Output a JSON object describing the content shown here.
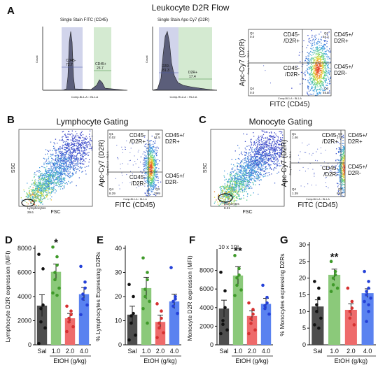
{
  "panels": {
    "A": {
      "letter": "A",
      "title": "Leukocyte D2R Flow",
      "hist1": {
        "title": "Single Stain FITC (CD45)",
        "xlabel": "Comp-BL1-A :: BL1-A",
        "ylabel": "Count",
        "gate_neg": "CD45-",
        "gate_neg_val": "72.7",
        "gate_pos": "CD45+",
        "gate_pos_val": "23.7"
      },
      "hist2": {
        "title": "Single Stain Apc-Cy7 (D2R)",
        "xlabel": "Comp-RL2-A :: RL2-A",
        "ylabel": "Count",
        "gate_neg": "D2R-",
        "gate_neg_val": "81.3",
        "gate_pos": "D2R+",
        "gate_pos_val": "17.4"
      },
      "quad": {
        "ylabel": "Apc-Cy7 (D2R)",
        "ylabel_small": "Comp-RL2-A :: RL2-A",
        "xlabel": "FITC (CD45)",
        "xlabel_small": "Comp-BL1-A :: BL1-A",
        "q1": "Q1",
        "q1_val": "0.0",
        "q2": "Q2",
        "q2_val": "54.2",
        "q3": "Q3",
        "q3_val": "45.8",
        "q4": "Q4",
        "q4_val": "0.0",
        "ul": "CD45-\n/D2R+",
        "ur": "CD45+/\nD2R+",
        "ll": "CD45-\n/D2R-",
        "lr": "CD45+/\nD2R-"
      }
    },
    "B": {
      "letter": "B",
      "title": "Lymphocyte Gating",
      "scatter": {
        "ylabel": "SSC",
        "xlabel": "FSC",
        "gate": "Lymphocytes",
        "gate_val": "29.6"
      },
      "quad": {
        "ylabel": "Apc-Cy7 (D2R)",
        "ylabel_small": "Comp-RL2-A :: RL2-A",
        "xlabel": "FITC (CD45)",
        "xlabel_small": "Comp-BL1-A :: BL1-A",
        "q1": "Q1",
        "q1_val": "0.02",
        "q2": "Q2",
        "q2_val": "61.5",
        "q3": "Q3",
        "q3_val": "29.9",
        "q4": "Q4",
        "q4_val": "8.29",
        "ul": "CD45-\n/D2R+",
        "ur": "CD45+/\nD2R+",
        "ll": "CD45-\n/D2R-",
        "lr": "CD45+/\nD2R-"
      }
    },
    "C": {
      "letter": "C",
      "title": "Monocyte Gating",
      "scatter": {
        "ylabel": "SSC",
        "xlabel": "FSC",
        "gate": "Monocytes",
        "gate_val": "8.21"
      },
      "quad": {
        "ylabel": "Apc-Cy7 (D2R)",
        "ylabel_small": "Comp-RL2-A :: RL2-A",
        "xlabel": "FITC (CD45)",
        "xlabel_small": "Comp-BL1-A :: BL1-A",
        "q1": "Q1",
        "q1_val": "1.46",
        "q2": "Q2",
        "q2_val": "27.4",
        "q3": "Q3",
        "q3_val": "69.7",
        "q4": "Q4",
        "q4_val": "1.39",
        "ul": "CD45-\n/D2R+",
        "ur": "CD45+/\nD2R+",
        "ll": "CD45-\n/D2R-",
        "lr": "CD45+/\nD2R-"
      }
    }
  },
  "bar_xlabel": "EtOH (g/kg)",
  "colors": {
    "Sal": "#4d4d4d",
    "1.0": "#8bc97a",
    "2.0": "#ee6b6b",
    "4.0": "#5a82f0",
    "dot_Sal": "#111111",
    "dot_1.0": "#3f9a2a",
    "dot_2.0": "#d63131",
    "dot_4.0": "#2441d8"
  },
  "chart_data": [
    {
      "panel": "D",
      "type": "bar",
      "ylabel": "Lymphocyte D2R expression (MFI)",
      "ylim": [
        0,
        8000
      ],
      "yticks": [
        0,
        2000,
        4000,
        6000,
        8000
      ],
      "categories": [
        "Sal",
        "1.0",
        "2.0",
        "4.0"
      ],
      "xlabel": "EtOH (g/kg)",
      "values": [
        3250,
        6050,
        2200,
        4200
      ],
      "errors": [
        900,
        650,
        400,
        550
      ],
      "points": [
        [
          7500,
          6300,
          3300,
          3000,
          1900,
          1400,
          100
        ],
        [
          8100,
          7300,
          6600,
          6000,
          5400,
          4700,
          4300,
          4100
        ],
        [
          3200,
          2800,
          2500,
          2200,
          1900,
          1500,
          1100
        ],
        [
          6500,
          5200,
          4700,
          4200,
          3800,
          3300,
          2500
        ]
      ],
      "significance": [
        "",
        "*",
        "",
        ""
      ]
    },
    {
      "panel": "E",
      "type": "bar",
      "ylabel": "% Lymphocytes Expressing D2Rs",
      "ylim": [
        0,
        40
      ],
      "yticks": [
        0,
        10,
        20,
        30,
        40
      ],
      "categories": [
        "Sal",
        "1.0",
        "2.0",
        "4.0"
      ],
      "xlabel": "EtOH (g/kg)",
      "values": [
        12.5,
        23.5,
        9.5,
        18
      ],
      "errors": [
        3.5,
        4.5,
        2.8,
        3
      ],
      "points": [
        [
          25,
          20,
          13,
          12,
          9,
          4,
          2
        ],
        [
          36,
          30,
          27,
          23,
          20,
          18,
          15,
          9
        ],
        [
          17,
          14,
          11,
          9,
          7,
          5,
          3
        ],
        [
          32,
          20,
          19,
          18,
          16,
          13
        ]
      ],
      "significance": [
        "",
        "",
        "",
        ""
      ]
    },
    {
      "panel": "F",
      "type": "bar",
      "ylabel": "Monocyte D2R expression (MFI)",
      "ylabel_multiplier": "10 x 10³",
      "ylim": [
        0,
        10000
      ],
      "yticks": [
        0,
        2000,
        4000,
        6000,
        8000
      ],
      "categories": [
        "Sal",
        "1.0",
        "2.0",
        "4.0"
      ],
      "xlabel": "EtOH (g/kg)",
      "values": [
        3900,
        7450,
        3100,
        4400
      ],
      "errors": [
        900,
        950,
        550,
        600
      ],
      "points": [
        [
          7800,
          5800,
          4000,
          2600,
          2200,
          1600,
          1200
        ],
        [
          9600,
          8200,
          7500,
          7200,
          6400,
          5900,
          5300
        ],
        [
          4500,
          3800,
          3300,
          2800,
          2300,
          1600,
          1200
        ],
        [
          6400,
          5100,
          4500,
          4200,
          3900,
          3300
        ]
      ],
      "significance": [
        "",
        "**",
        "",
        ""
      ]
    },
    {
      "panel": "G",
      "type": "bar",
      "ylabel": "% Monocytes expressing D2Rs",
      "ylim": [
        0,
        30
      ],
      "yticks": [
        0,
        5,
        10,
        15,
        20,
        25,
        30
      ],
      "categories": [
        "Sal",
        "1.0",
        "2.0",
        "4.0"
      ],
      "xlabel": "EtOH (g/kg)",
      "values": [
        11.5,
        21,
        10.5,
        15.5
      ],
      "errors": [
        2,
        1.7,
        1.8,
        1.3
      ],
      "points": [
        [
          19,
          17,
          14,
          12,
          10,
          8,
          6,
          5
        ],
        [
          25,
          22,
          21,
          20,
          18,
          17,
          16
        ],
        [
          17,
          13,
          11,
          10,
          8,
          6
        ],
        [
          22,
          19,
          17,
          16,
          15,
          14,
          13,
          12,
          10,
          7
        ]
      ],
      "significance": [
        "",
        "**",
        "",
        ""
      ]
    }
  ]
}
